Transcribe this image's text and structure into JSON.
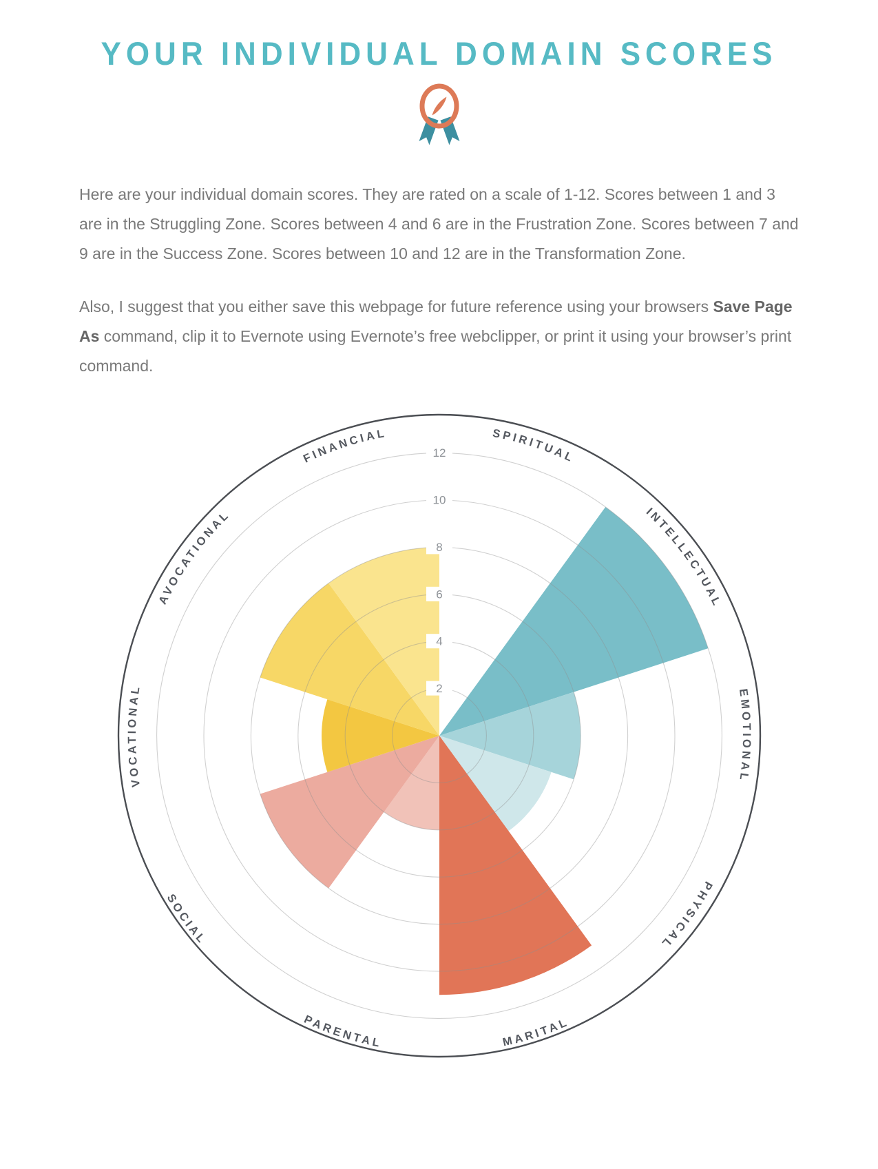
{
  "header": {
    "title": "YOUR INDIVIDUAL DOMAIN SCORES",
    "title_color": "#56bac4"
  },
  "icon": {
    "name": "award-medal-ribbon",
    "ring_color": "#dd7a57",
    "needle_color": "#dd7a57",
    "ribbon_color": "#3d8fa0"
  },
  "intro": {
    "p1": "Here are your individual domain scores. They are rated on a scale of 1-12. Scores between 1 and 3 are in the Struggling Zone. Scores between 4 and 6 are in the Frustration Zone. Scores between 7 and 9 are in the Success Zone. Scores between 10 and 12 are in the Transformation Zone.",
    "p2_before": "Also, I suggest that you either save this webpage for future reference using your browsers ",
    "p2_bold": "Save Page As",
    "p2_after": " command, clip it to Evernote using Evernote’s free webclipper, or print it using your browser’s print command."
  },
  "chart_data": {
    "type": "polar-wedge-wheel",
    "title": "Individual domain scores wheel",
    "scale_min": 1,
    "scale_max": 12,
    "tick_values": [
      2,
      4,
      6,
      8,
      10,
      12
    ],
    "sector_degrees": 36,
    "categories": [
      "SPIRITUAL",
      "INTELLECTUAL",
      "EMOTIONAL",
      "PHYSICAL",
      "MARITAL",
      "PARENTAL",
      "SOCIAL",
      "VOCATIONAL",
      "AVOCATIONAL",
      "FINANCIAL"
    ],
    "values": [
      0,
      12,
      6,
      5,
      11,
      4,
      8,
      5,
      8,
      8
    ],
    "colors": [
      "#8fcad2",
      "#79bec8",
      "#a6d4da",
      "#cfe7ea",
      "#e17557",
      "#f1c2b8",
      "#ecab9f",
      "#f3c741",
      "#f7d766",
      "#fae48e"
    ],
    "zones": [
      {
        "name": "Struggling Zone",
        "range": "1-3"
      },
      {
        "name": "Frustration Zone",
        "range": "4-6"
      },
      {
        "name": "Success Zone",
        "range": "7-9"
      },
      {
        "name": "Transformation Zone",
        "range": "10-12"
      }
    ],
    "flipped_labels": [
      "MARITAL",
      "PARENTAL",
      "SOCIAL"
    ],
    "grid": true,
    "rim_color": "#4b4e53",
    "grid_color": "#8f8f8f",
    "tick_color": "#8e9297",
    "label_color": "#54585f"
  }
}
